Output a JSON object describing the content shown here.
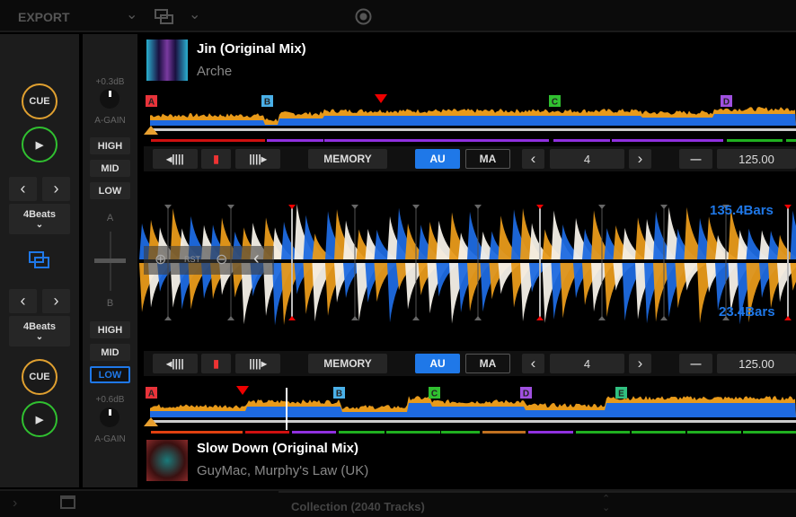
{
  "topbar": {
    "export_label": "EXPORT",
    "icons": [
      "chevron-down-icon",
      "dual-deck-icon",
      "chevron-down-icon",
      "record-icon"
    ]
  },
  "left": {
    "cue_label": "CUE",
    "beats_label": "4Beats"
  },
  "mixer": {
    "gain_top": "+0.3dB",
    "gain_bottom": "+0.6dB",
    "gain_label": "A-GAIN",
    "high": "HIGH",
    "mid": "MID",
    "low": "LOW",
    "fader_a": "A",
    "fader_b": "B"
  },
  "deck1": {
    "title": "Jin (Original Mix)",
    "artist": "Arche",
    "cues": [
      "A",
      "B",
      "C",
      "D"
    ]
  },
  "deck2": {
    "title": "Slow Down (Original Mix)",
    "artist": "GuyMac, Murphy's Law (UK)",
    "cues": [
      "A",
      "B",
      "C",
      "D",
      "E"
    ]
  },
  "toolbar": {
    "memory": "MEMORY",
    "au": "AU",
    "ma": "MA",
    "beat_count": "4",
    "bpm": "125.00"
  },
  "zoom": {
    "reset": "RST",
    "bars_top": "135.4Bars",
    "bars_bottom": "23.4Bars"
  },
  "bottom": {
    "collection": "Collection (2040 Tracks)"
  },
  "colors": {
    "cueA": "#e8333a",
    "cueB": "#4ab0e8",
    "cueC": "#30c030",
    "cueD": "#a050e0",
    "cueE": "#30c080",
    "wave_blue": "#1e6ae0",
    "wave_orange": "#e89a1a",
    "accent": "#1f78e8"
  }
}
